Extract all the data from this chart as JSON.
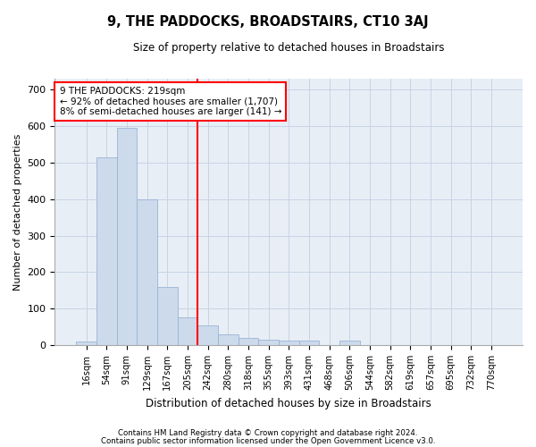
{
  "title": "9, THE PADDOCKS, BROADSTAIRS, CT10 3AJ",
  "subtitle": "Size of property relative to detached houses in Broadstairs",
  "xlabel": "Distribution of detached houses by size in Broadstairs",
  "ylabel": "Number of detached properties",
  "bar_color": "#ccdaec",
  "bar_edge_color": "#9ab4d4",
  "categories": [
    "16sqm",
    "54sqm",
    "91sqm",
    "129sqm",
    "167sqm",
    "205sqm",
    "242sqm",
    "280sqm",
    "318sqm",
    "355sqm",
    "393sqm",
    "431sqm",
    "468sqm",
    "506sqm",
    "544sqm",
    "582sqm",
    "619sqm",
    "657sqm",
    "695sqm",
    "732sqm",
    "770sqm"
  ],
  "values": [
    10,
    515,
    595,
    400,
    160,
    75,
    55,
    30,
    20,
    15,
    13,
    13,
    0,
    13,
    0,
    0,
    0,
    0,
    0,
    0,
    0
  ],
  "ylim": [
    0,
    730
  ],
  "yticks": [
    0,
    100,
    200,
    300,
    400,
    500,
    600,
    700
  ],
  "property_line_x": 5.5,
  "annotation_line1": "9 THE PADDOCKS: 219sqm",
  "annotation_line2": "← 92% of detached houses are smaller (1,707)",
  "annotation_line3": "8% of semi-detached houses are larger (141) →",
  "footer1": "Contains HM Land Registry data © Crown copyright and database right 2024.",
  "footer2": "Contains public sector information licensed under the Open Government Licence v3.0.",
  "grid_color": "#c8d4e4",
  "background_color": "#e8eef6"
}
